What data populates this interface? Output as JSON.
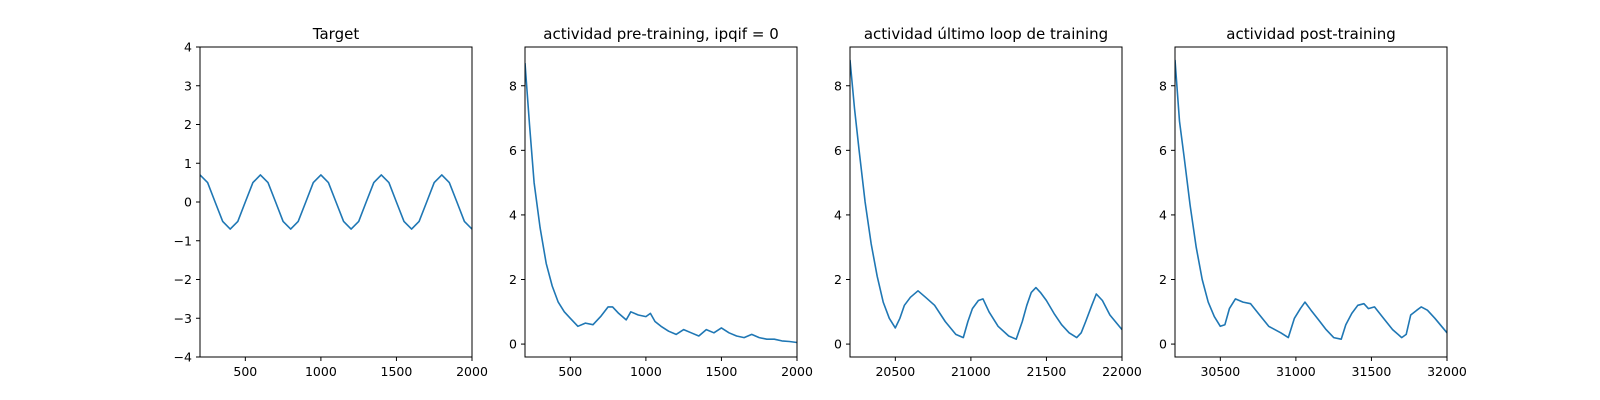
{
  "series_color": "#1f77b4",
  "chart_data": [
    {
      "type": "line",
      "title": "Target",
      "xlim": [
        200,
        2000
      ],
      "ylim": [
        -4,
        4
      ],
      "xticks": [
        500,
        1000,
        1500,
        2000
      ],
      "yticks": [
        -4,
        -3,
        -2,
        -1,
        0,
        1,
        2,
        3,
        4
      ],
      "x": [
        200,
        250,
        300,
        350,
        400,
        450,
        500,
        550,
        600,
        650,
        700,
        750,
        800,
        850,
        900,
        950,
        1000,
        1050,
        1100,
        1150,
        1200,
        1250,
        1300,
        1350,
        1400,
        1450,
        1500,
        1550,
        1600,
        1650,
        1700,
        1750,
        1800,
        1850,
        1900,
        1950,
        2000
      ],
      "y": [
        0.7,
        0.5,
        0.0,
        -0.5,
        -0.7,
        -0.5,
        0.0,
        0.5,
        0.7,
        0.5,
        0.0,
        -0.5,
        -0.7,
        -0.5,
        0.0,
        0.5,
        0.7,
        0.5,
        0.0,
        -0.5,
        -0.7,
        -0.5,
        0.0,
        0.5,
        0.7,
        0.5,
        0.0,
        -0.5,
        -0.7,
        -0.5,
        0.0,
        0.5,
        0.7,
        0.5,
        0.0,
        -0.5,
        -0.7
      ]
    },
    {
      "type": "line",
      "title": "actividad pre-training, ipqif = 0",
      "xlim": [
        200,
        2000
      ],
      "ylim": [
        -0.4,
        9.2
      ],
      "xticks": [
        500,
        1000,
        1500,
        2000
      ],
      "yticks": [
        0,
        2,
        4,
        6,
        8
      ],
      "x": [
        200,
        230,
        260,
        300,
        340,
        380,
        420,
        460,
        500,
        550,
        600,
        650,
        700,
        750,
        780,
        820,
        870,
        900,
        950,
        1000,
        1030,
        1060,
        1100,
        1150,
        1200,
        1250,
        1300,
        1350,
        1400,
        1450,
        1500,
        1550,
        1600,
        1650,
        1700,
        1750,
        1800,
        1850,
        1900,
        1950,
        2000
      ],
      "y": [
        8.7,
        6.8,
        5.0,
        3.6,
        2.5,
        1.8,
        1.3,
        1.0,
        0.8,
        0.55,
        0.65,
        0.6,
        0.85,
        1.15,
        1.15,
        0.95,
        0.75,
        1.0,
        0.9,
        0.85,
        0.95,
        0.7,
        0.55,
        0.4,
        0.3,
        0.45,
        0.35,
        0.25,
        0.45,
        0.35,
        0.5,
        0.35,
        0.25,
        0.2,
        0.3,
        0.2,
        0.15,
        0.15,
        0.1,
        0.08,
        0.05
      ]
    },
    {
      "type": "line",
      "title": "actividad último loop de training",
      "xlim": [
        20200,
        22000
      ],
      "ylim": [
        -0.4,
        9.2
      ],
      "xticks": [
        20500,
        21000,
        21500,
        22000
      ],
      "yticks": [
        0,
        2,
        4,
        6,
        8
      ],
      "x": [
        20200,
        20230,
        20260,
        20300,
        20340,
        20380,
        20420,
        20460,
        20500,
        20530,
        20560,
        20600,
        20650,
        20700,
        20760,
        20830,
        20900,
        20950,
        20980,
        21010,
        21050,
        21080,
        21120,
        21180,
        21250,
        21300,
        21340,
        21370,
        21400,
        21430,
        21460,
        21500,
        21550,
        21600,
        21650,
        21700,
        21730,
        21760,
        21800,
        21830,
        21870,
        21920,
        22000
      ],
      "y": [
        8.8,
        7.3,
        6.0,
        4.4,
        3.1,
        2.1,
        1.3,
        0.8,
        0.5,
        0.8,
        1.2,
        1.45,
        1.65,
        1.45,
        1.2,
        0.7,
        0.3,
        0.2,
        0.7,
        1.1,
        1.35,
        1.4,
        1.0,
        0.55,
        0.25,
        0.15,
        0.7,
        1.2,
        1.6,
        1.75,
        1.6,
        1.35,
        0.95,
        0.6,
        0.35,
        0.2,
        0.35,
        0.7,
        1.2,
        1.55,
        1.35,
        0.9,
        0.45
      ]
    },
    {
      "type": "line",
      "title": "actividad post-training",
      "xlim": [
        30200,
        32000
      ],
      "ylim": [
        -0.4,
        9.2
      ],
      "xticks": [
        30500,
        31000,
        31500,
        32000
      ],
      "yticks": [
        0,
        2,
        4,
        6,
        8
      ],
      "x": [
        30200,
        30230,
        30260,
        30300,
        30340,
        30380,
        30420,
        30460,
        30500,
        30530,
        30560,
        30600,
        30650,
        30700,
        30760,
        30820,
        30900,
        30950,
        30990,
        31030,
        31060,
        31100,
        31150,
        31200,
        31250,
        31300,
        31330,
        31370,
        31410,
        31450,
        31480,
        31520,
        31580,
        31640,
        31700,
        31730,
        31760,
        31800,
        31830,
        31870,
        31920,
        32000
      ],
      "y": [
        8.8,
        6.9,
        5.8,
        4.3,
        3.0,
        2.0,
        1.3,
        0.85,
        0.55,
        0.6,
        1.1,
        1.4,
        1.3,
        1.25,
        0.9,
        0.55,
        0.35,
        0.2,
        0.8,
        1.1,
        1.3,
        1.05,
        0.75,
        0.45,
        0.2,
        0.15,
        0.6,
        0.95,
        1.2,
        1.25,
        1.1,
        1.15,
        0.8,
        0.45,
        0.2,
        0.3,
        0.9,
        1.05,
        1.15,
        1.05,
        0.8,
        0.35
      ]
    }
  ]
}
